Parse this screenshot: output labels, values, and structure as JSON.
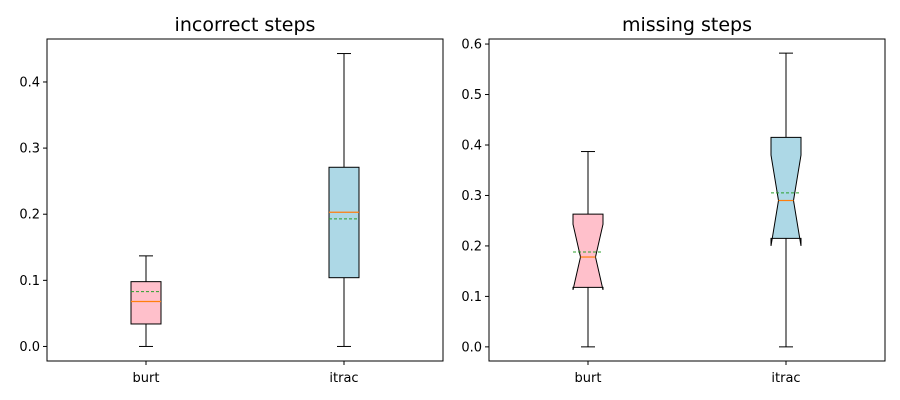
{
  "chart_data": [
    {
      "type": "box",
      "title": "incorrect steps",
      "xlabel": "",
      "ylabel": "",
      "ylim": [
        -0.022,
        0.465
      ],
      "yticks": [
        0.0,
        0.1,
        0.2,
        0.3,
        0.4
      ],
      "notched": false,
      "grid": false,
      "categories": [
        "burt",
        "itrac"
      ],
      "boxes": [
        {
          "label": "burt",
          "whisker_low": 0.0,
          "q1": 0.034,
          "median": 0.068,
          "mean": 0.083,
          "q3": 0.098,
          "whisker_high": 0.137,
          "color": "#ffc0cb"
        },
        {
          "label": "itrac",
          "whisker_low": 0.0,
          "q1": 0.104,
          "median": 0.203,
          "mean": 0.193,
          "q3": 0.271,
          "whisker_high": 0.443,
          "color": "#add8e6"
        }
      ],
      "median_color": "#ff7f0e",
      "mean_color": "#2ca02c"
    },
    {
      "type": "box",
      "title": "missing steps",
      "xlabel": "",
      "ylabel": "",
      "ylim": [
        -0.028,
        0.61
      ],
      "yticks": [
        0.0,
        0.1,
        0.2,
        0.3,
        0.4,
        0.5,
        0.6
      ],
      "notched": true,
      "grid": false,
      "categories": [
        "burt",
        "itrac"
      ],
      "boxes": [
        {
          "label": "burt",
          "whisker_low": 0.0,
          "q1": 0.118,
          "median": 0.178,
          "mean": 0.188,
          "q3": 0.263,
          "whisker_high": 0.387,
          "notch_low": 0.113,
          "notch_high": 0.243,
          "color": "#ffc0cb"
        },
        {
          "label": "itrac",
          "whisker_low": 0.0,
          "q1": 0.215,
          "median": 0.29,
          "mean": 0.305,
          "q3": 0.415,
          "whisker_high": 0.582,
          "notch_low": 0.2,
          "notch_high": 0.38,
          "color": "#add8e6"
        }
      ],
      "median_color": "#ff7f0e",
      "mean_color": "#2ca02c"
    }
  ]
}
